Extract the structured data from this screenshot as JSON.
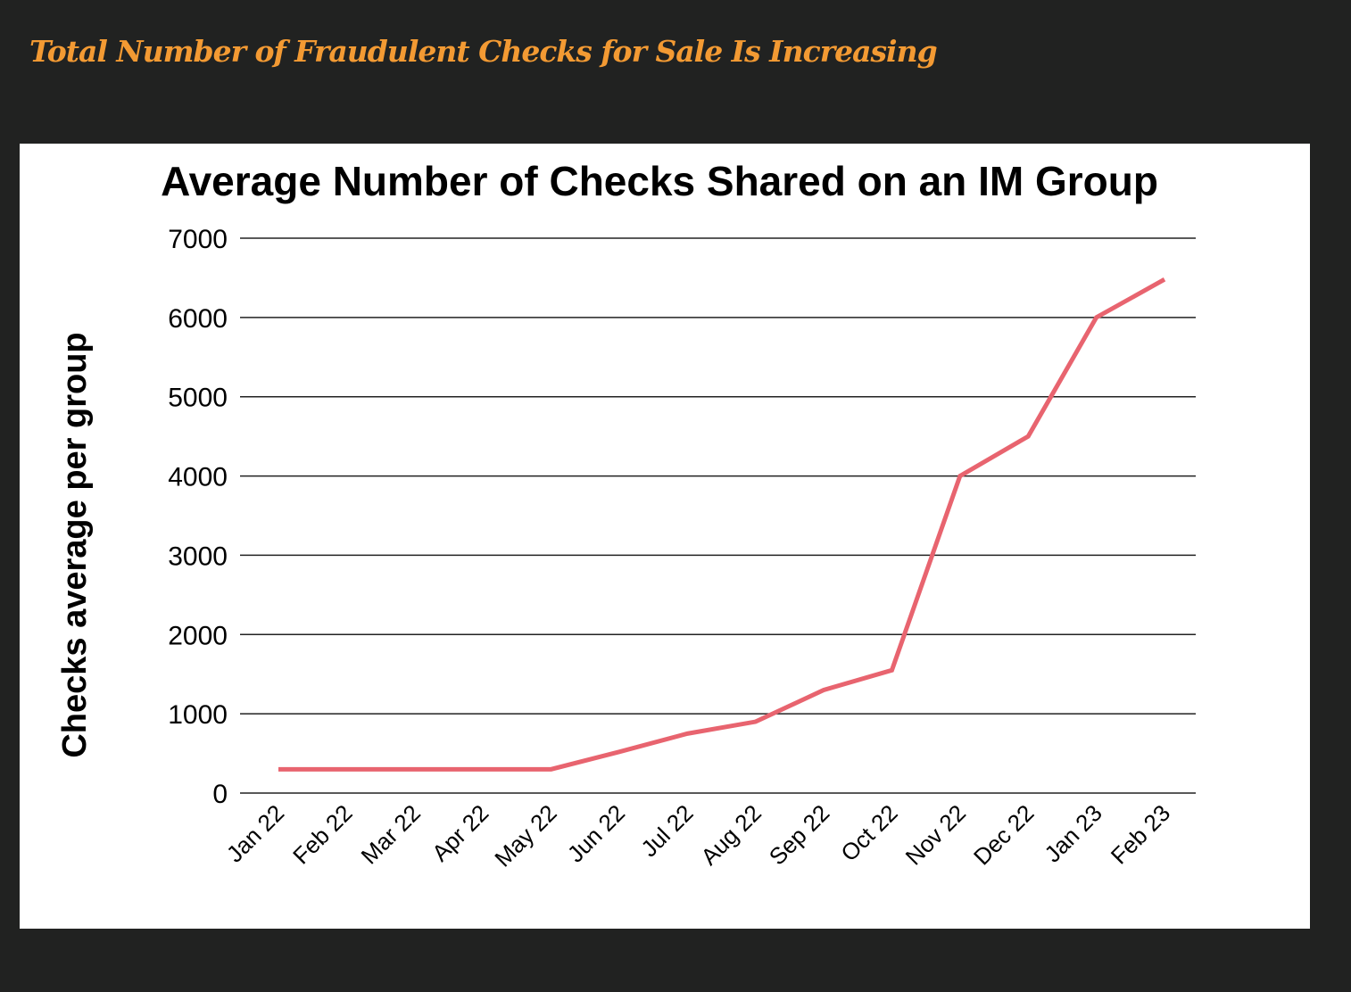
{
  "headline": "Total Number of Fraudulent Checks for Sale Is Increasing",
  "colors": {
    "background": "#212221",
    "headline": "#f39a33",
    "line": "#e8646f",
    "grid": "#222222"
  },
  "chart_data": {
    "type": "line",
    "title": "Average Number of Checks Shared on an IM Group",
    "xlabel": "",
    "ylabel": "Checks average per group",
    "ylim": [
      0,
      7000
    ],
    "yticks": [
      0,
      1000,
      2000,
      3000,
      4000,
      5000,
      6000,
      7000
    ],
    "grid": true,
    "legend": "none",
    "categories": [
      "Jan 22",
      "Feb 22",
      "Mar 22",
      "Apr 22",
      "May 22",
      "Jun 22",
      "Jul 22",
      "Aug 22",
      "Sep 22",
      "Oct 22",
      "Nov 22",
      "Dec 22",
      "Jan 23",
      "Feb 23"
    ],
    "series": [
      {
        "name": "Checks average per group",
        "values": [
          300,
          300,
          300,
          300,
          300,
          520,
          750,
          900,
          1300,
          1550,
          4000,
          4500,
          6000,
          6480
        ]
      }
    ]
  }
}
